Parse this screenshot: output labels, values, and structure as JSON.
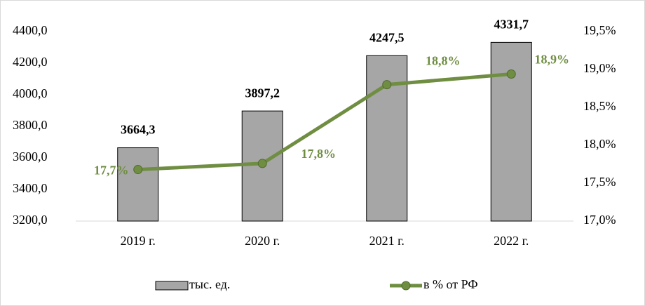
{
  "chart_data": {
    "type": "combo",
    "categories": [
      "2019 г.",
      "2020 г.",
      "2021 г.",
      "2022 г."
    ],
    "series": [
      {
        "name": "тыс. ед.",
        "type": "bar",
        "color": "#a6a6a6",
        "values": [
          3664.3,
          3897.2,
          4247.5,
          4331.7
        ],
        "value_labels": [
          "3664,3",
          "3897,2",
          "4247,5",
          "4331,7"
        ]
      },
      {
        "name": "в % от РФ",
        "type": "line",
        "axis": "y2",
        "color": "#6f8e42",
        "values": [
          17.68,
          17.76,
          18.8,
          18.94
        ],
        "value_labels": [
          "17,7%",
          "17,8%",
          "18,8%",
          "18,9%"
        ]
      }
    ],
    "ylim": [
      3200,
      4400
    ],
    "yticks": [
      {
        "value": 3200,
        "label": "3200,0"
      },
      {
        "value": 3400,
        "label": "3400,0"
      },
      {
        "value": 3600,
        "label": "3600,0"
      },
      {
        "value": 3800,
        "label": "3800,0"
      },
      {
        "value": 4000,
        "label": "4000,0"
      },
      {
        "value": 4200,
        "label": "4200,0"
      },
      {
        "value": 4400,
        "label": "4400,0"
      }
    ],
    "y2lim": [
      17,
      19.5
    ],
    "y2ticks": [
      {
        "value": 17,
        "label": "17,0%"
      },
      {
        "value": 17.5,
        "label": "17,5%"
      },
      {
        "value": 18,
        "label": "18,0%"
      },
      {
        "value": 18.5,
        "label": "18,5%"
      },
      {
        "value": 19,
        "label": "19,0%"
      },
      {
        "value": 19.5,
        "label": "19,5%"
      }
    ],
    "legend": "bottom"
  }
}
